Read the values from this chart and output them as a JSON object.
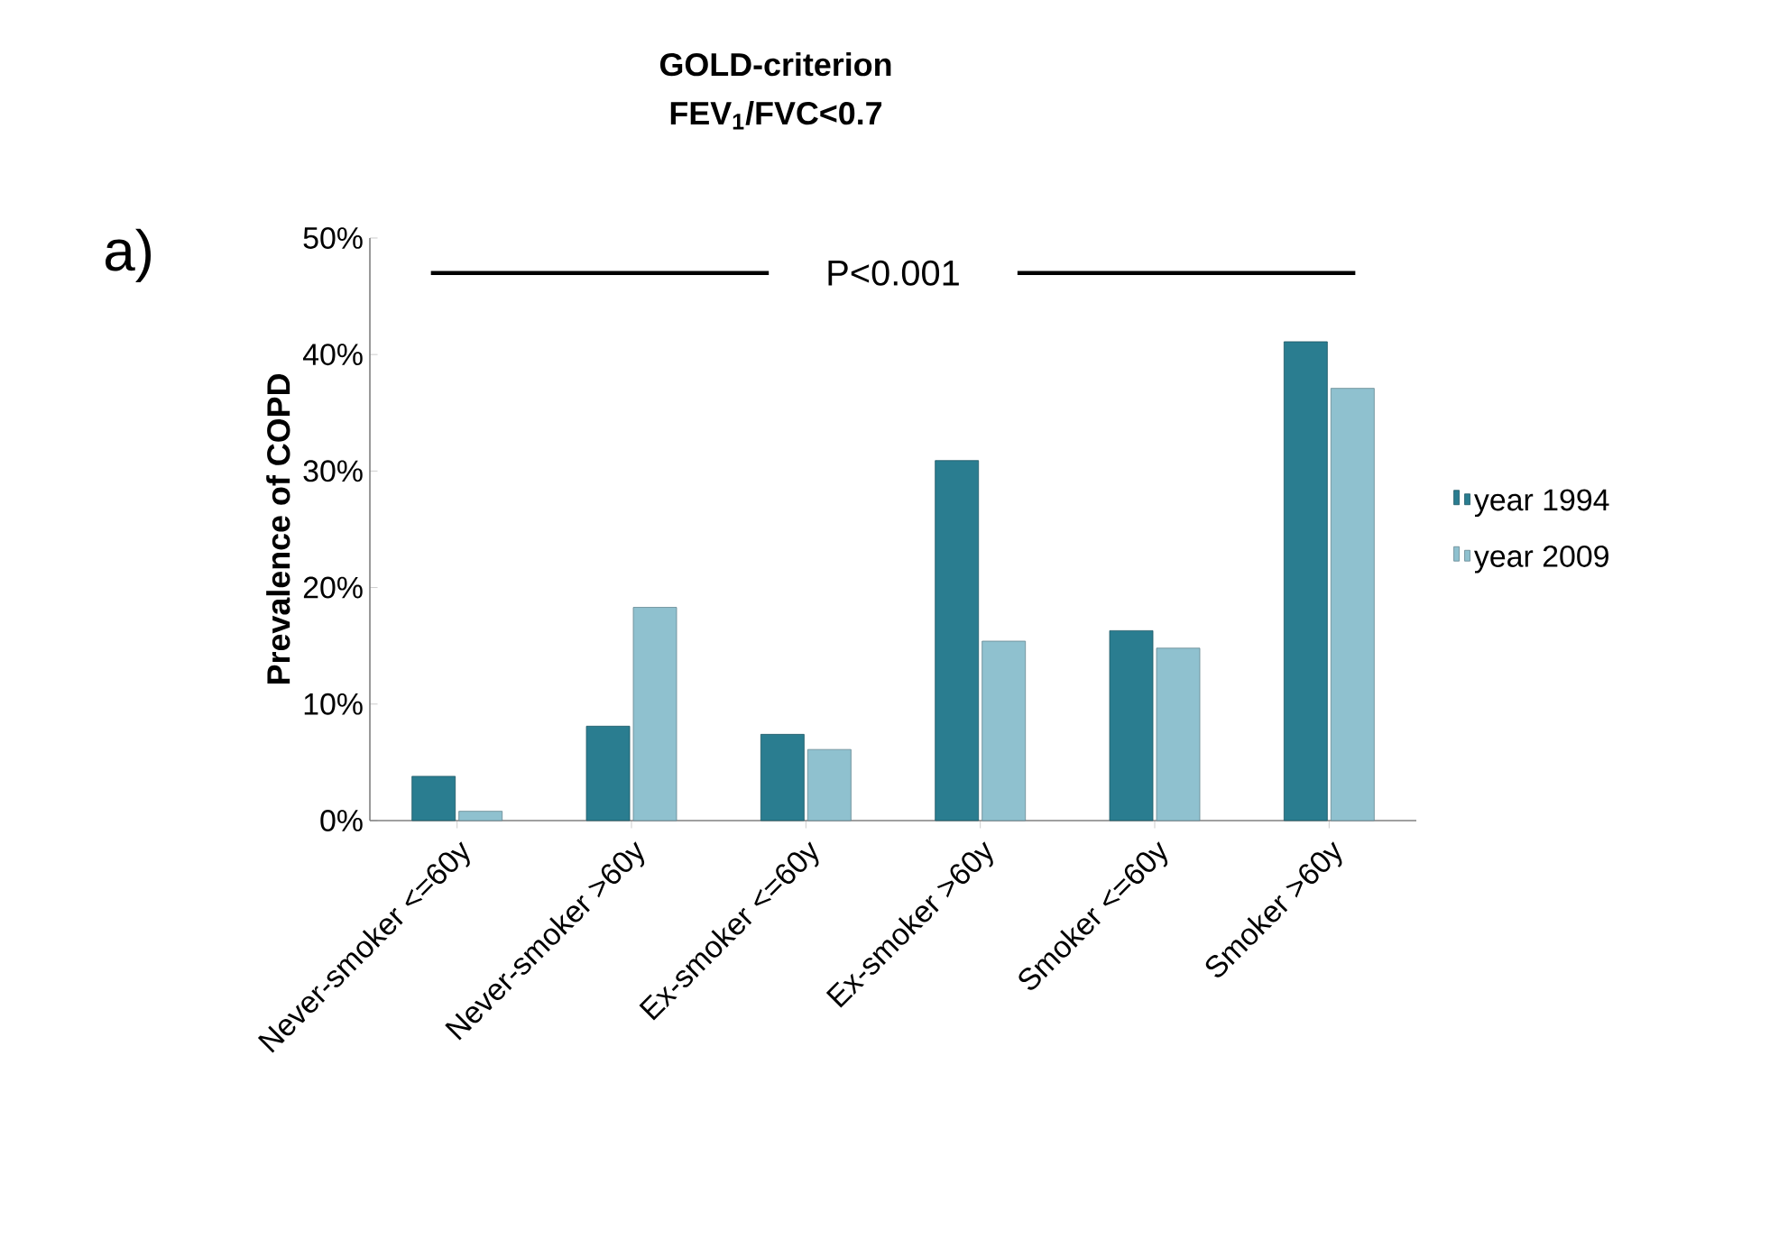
{
  "chart_data": {
    "type": "bar",
    "title": "GOLD-criterion",
    "subtitle": "FEV$_{1}$/FVC<0.7",
    "ylabel": "Prevalence of COPD",
    "categories": [
      "Never-smoker <=60y",
      "Never-smoker >60y",
      "Ex-smoker <=60y",
      "Ex-smoker >60y",
      "Smoker <=60y",
      "Smoker >60y"
    ],
    "series": [
      {
        "name": "year 1994",
        "color": "#2a7d90",
        "values": [
          3.8,
          8.1,
          7.4,
          30.9,
          16.3,
          41.1
        ]
      },
      {
        "name": "year 2009",
        "color": "#8fc1cf",
        "values": [
          0.8,
          18.3,
          6.1,
          15.4,
          14.8,
          37.1
        ]
      }
    ],
    "ylim": [
      0,
      50
    ],
    "yticks": [
      {
        "value": 0,
        "label": "0%"
      },
      {
        "value": 10,
        "label": "10%"
      },
      {
        "value": 20,
        "label": "20%"
      },
      {
        "value": 30,
        "label": "30%"
      },
      {
        "value": 40,
        "label": "40%"
      },
      {
        "value": 50,
        "label": "50%"
      }
    ],
    "annotations": [
      "a)",
      "P<0.001"
    ],
    "grid": false,
    "legend": "right"
  }
}
